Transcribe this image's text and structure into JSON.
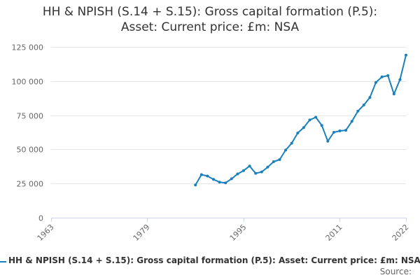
{
  "colors": {
    "series": "#1a80bb",
    "grid": "#e6e6e6",
    "axis": "#ccd6eb",
    "text": "#666666"
  },
  "chart_data": {
    "type": "line",
    "title": "HH & NPISH (S.14 + S.15): Gross capital formation (P.5): Asset: Current price: £m: NSA",
    "title_lines": [
      "HH & NPISH (S.14 + S.15): Gross capital formation (P.5):",
      "Asset: Current price: £m: NSA"
    ],
    "xlabel": "",
    "ylabel": "",
    "xlim": [
      1963,
      2022
    ],
    "ylim": [
      0,
      125000
    ],
    "x_ticks": [
      1963,
      1979,
      1995,
      2011,
      2022
    ],
    "y_ticks": [
      0,
      25000,
      50000,
      75000,
      100000,
      125000
    ],
    "y_tick_labels": [
      "0",
      "25 000",
      "50 000",
      "75 000",
      "100 000",
      "125 000"
    ],
    "grid": true,
    "legend_position": "bottom",
    "series": [
      {
        "name": "HH & NPISH (S.14 + S.15): Gross capital formation (P.5): Asset: Current price: £m: NSA",
        "x": [
          1987,
          1988,
          1989,
          1990,
          1991,
          1992,
          1993,
          1994,
          1995,
          1996,
          1997,
          1998,
          1999,
          2000,
          2001,
          2002,
          2003,
          2004,
          2005,
          2006,
          2007,
          2008,
          2009,
          2010,
          2011,
          2012,
          2013,
          2014,
          2015,
          2016,
          2017,
          2018,
          2019,
          2020,
          2021,
          2022
        ],
        "values": [
          24000,
          31500,
          30500,
          28000,
          26000,
          25500,
          28500,
          32000,
          34500,
          37800,
          32500,
          33500,
          37000,
          41000,
          42500,
          49500,
          54500,
          62000,
          66000,
          71500,
          73500,
          67500,
          56000,
          62500,
          63500,
          64000,
          70500,
          78000,
          82500,
          88000,
          99000,
          103000,
          104000,
          90500,
          101000,
          119000
        ]
      }
    ]
  },
  "legend": {
    "label": "HH & NPISH (S.14 + S.15): Gross capital formation (P.5): Asset: Current price: £m: NSA"
  },
  "source": {
    "label": "Source:"
  }
}
